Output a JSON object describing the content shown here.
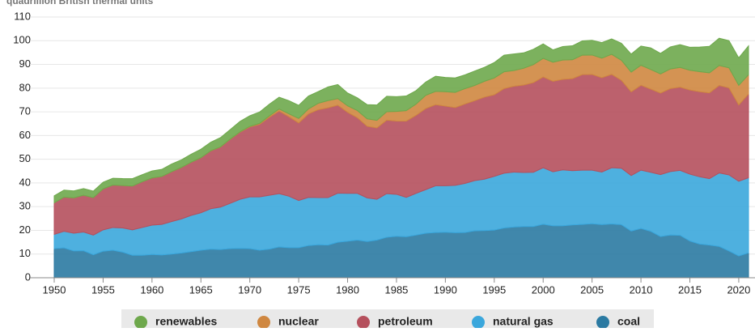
{
  "chart_data": {
    "type": "stacked_area",
    "subtitle": "quadrillion British thermal units",
    "x": [
      1950,
      1951,
      1952,
      1953,
      1954,
      1955,
      1956,
      1957,
      1958,
      1959,
      1960,
      1961,
      1962,
      1963,
      1964,
      1965,
      1966,
      1967,
      1968,
      1969,
      1970,
      1971,
      1972,
      1973,
      1974,
      1975,
      1976,
      1977,
      1978,
      1979,
      1980,
      1981,
      1982,
      1983,
      1984,
      1985,
      1986,
      1987,
      1988,
      1989,
      1990,
      1991,
      1992,
      1993,
      1994,
      1995,
      1996,
      1997,
      1998,
      1999,
      2000,
      2001,
      2002,
      2003,
      2004,
      2005,
      2006,
      2007,
      2008,
      2009,
      2010,
      2011,
      2012,
      2013,
      2014,
      2015,
      2016,
      2017,
      2018,
      2019,
      2020,
      2021
    ],
    "series": [
      {
        "name": "renewables",
        "color": "#6ea84c",
        "values": [
          2.98,
          2.97,
          2.95,
          2.83,
          2.75,
          2.78,
          2.89,
          2.93,
          3.1,
          3.0,
          2.93,
          3.01,
          3.24,
          3.2,
          3.36,
          3.57,
          3.59,
          3.92,
          4.0,
          4.4,
          4.5,
          4.8,
          4.95,
          4.97,
          5.54,
          5.54,
          5.46,
          4.96,
          5.8,
          5.92,
          5.4,
          5.4,
          6.0,
          6.5,
          6.5,
          6.2,
          6.2,
          5.7,
          5.6,
          6.4,
          6.0,
          6.1,
          5.8,
          6.1,
          5.9,
          6.5,
          7.0,
          7.0,
          6.5,
          6.5,
          6.1,
          5.2,
          5.7,
          5.9,
          6.0,
          6.2,
          6.6,
          6.5,
          7.2,
          7.6,
          8.1,
          9.1,
          8.7,
          9.3,
          9.6,
          9.7,
          10.4,
          11.2,
          11.5,
          11.5,
          11.6,
          12.2
        ]
      },
      {
        "name": "nuclear",
        "color": "#cf8740",
        "values": [
          0,
          0,
          0,
          0,
          0,
          0,
          0,
          0,
          0,
          0,
          0.01,
          0.02,
          0.03,
          0.04,
          0.04,
          0.04,
          0.06,
          0.09,
          0.14,
          0.15,
          0.24,
          0.41,
          0.58,
          0.91,
          1.27,
          1.9,
          2.11,
          2.7,
          3.02,
          2.78,
          2.74,
          3.01,
          3.13,
          3.2,
          3.55,
          4.08,
          4.38,
          4.75,
          5.59,
          5.6,
          6.1,
          6.42,
          6.48,
          6.41,
          6.69,
          7.08,
          7.09,
          6.6,
          7.07,
          7.61,
          7.86,
          8.03,
          8.14,
          7.96,
          8.22,
          8.16,
          8.21,
          8.46,
          8.43,
          8.36,
          8.43,
          8.27,
          8.06,
          8.27,
          8.33,
          8.34,
          8.43,
          8.42,
          8.44,
          8.45,
          8.25,
          8.13
        ]
      },
      {
        "name": "petroleum",
        "color": "#b5505d",
        "values": [
          13.3,
          14.4,
          14.9,
          15.5,
          15.8,
          17.3,
          17.9,
          17.9,
          18.5,
          19.3,
          19.9,
          20.2,
          21.0,
          21.7,
          22.4,
          23.2,
          24.4,
          25.3,
          26.98,
          28.3,
          29.5,
          30.6,
          32.9,
          34.8,
          33.5,
          32.7,
          35.2,
          37.1,
          37.9,
          37.1,
          34.2,
          31.9,
          30.2,
          30.1,
          31.0,
          30.9,
          32.2,
          32.9,
          34.2,
          34.2,
          33.6,
          32.8,
          33.5,
          33.7,
          34.6,
          34.4,
          35.7,
          36.2,
          36.9,
          37.8,
          38.3,
          38.2,
          38.2,
          38.8,
          40.3,
          40.4,
          39.8,
          39.4,
          37.1,
          35.3,
          35.8,
          35.1,
          34.4,
          35.0,
          35.1,
          35.5,
          35.9,
          36.2,
          36.9,
          36.7,
          32.2,
          35.3
        ]
      },
      {
        "name": "natural gas",
        "color": "#3ba7dc",
        "values": [
          6.0,
          7.0,
          7.5,
          7.9,
          8.3,
          9.0,
          9.6,
          10.2,
          10.7,
          11.7,
          12.4,
          12.9,
          13.7,
          14.4,
          15.3,
          15.8,
          17.0,
          17.9,
          19.1,
          20.7,
          21.8,
          22.5,
          22.7,
          22.5,
          21.7,
          19.9,
          20.3,
          19.9,
          20.0,
          20.7,
          20.2,
          19.7,
          18.4,
          17.2,
          18.4,
          17.7,
          16.6,
          17.6,
          18.4,
          19.7,
          19.6,
          20.0,
          20.7,
          21.2,
          21.7,
          22.7,
          23.1,
          23.2,
          22.8,
          22.9,
          23.8,
          22.8,
          23.6,
          22.9,
          22.9,
          22.6,
          22.2,
          23.7,
          23.8,
          23.4,
          24.6,
          24.9,
          26.1,
          26.8,
          27.4,
          28.2,
          28.4,
          28.0,
          31.0,
          32.1,
          31.5,
          31.7
        ]
      },
      {
        "name": "coal",
        "color": "#2b7aa2",
        "values": [
          12.3,
          12.6,
          11.3,
          11.4,
          9.7,
          11.2,
          11.6,
          10.8,
          9.5,
          9.5,
          9.8,
          9.6,
          10.0,
          10.4,
          11.0,
          11.6,
          12.1,
          11.9,
          12.3,
          12.4,
          12.3,
          11.6,
          12.1,
          13.0,
          12.7,
          12.7,
          13.6,
          13.9,
          13.8,
          15.0,
          15.4,
          15.9,
          15.3,
          15.9,
          17.1,
          17.5,
          17.3,
          18.0,
          18.8,
          19.1,
          19.2,
          18.99,
          19.1,
          19.8,
          19.9,
          20.1,
          21.0,
          21.4,
          21.6,
          21.6,
          22.6,
          21.9,
          21.9,
          22.3,
          22.5,
          22.8,
          22.4,
          22.7,
          22.4,
          19.7,
          20.8,
          19.6,
          17.4,
          18.0,
          17.9,
          15.5,
          14.2,
          13.8,
          13.2,
          11.3,
          9.2,
          10.5
        ]
      }
    ],
    "xlim": [
      1950,
      2021
    ],
    "xticks": [
      1950,
      1955,
      1960,
      1965,
      1970,
      1975,
      1980,
      1985,
      1990,
      1995,
      2000,
      2005,
      2010,
      2015,
      2020
    ],
    "ylim": [
      0,
      110
    ],
    "yticks": [
      0,
      10,
      20,
      30,
      40,
      50,
      60,
      70,
      80,
      90,
      100,
      110
    ],
    "grid": true,
    "legend": "bottom"
  }
}
